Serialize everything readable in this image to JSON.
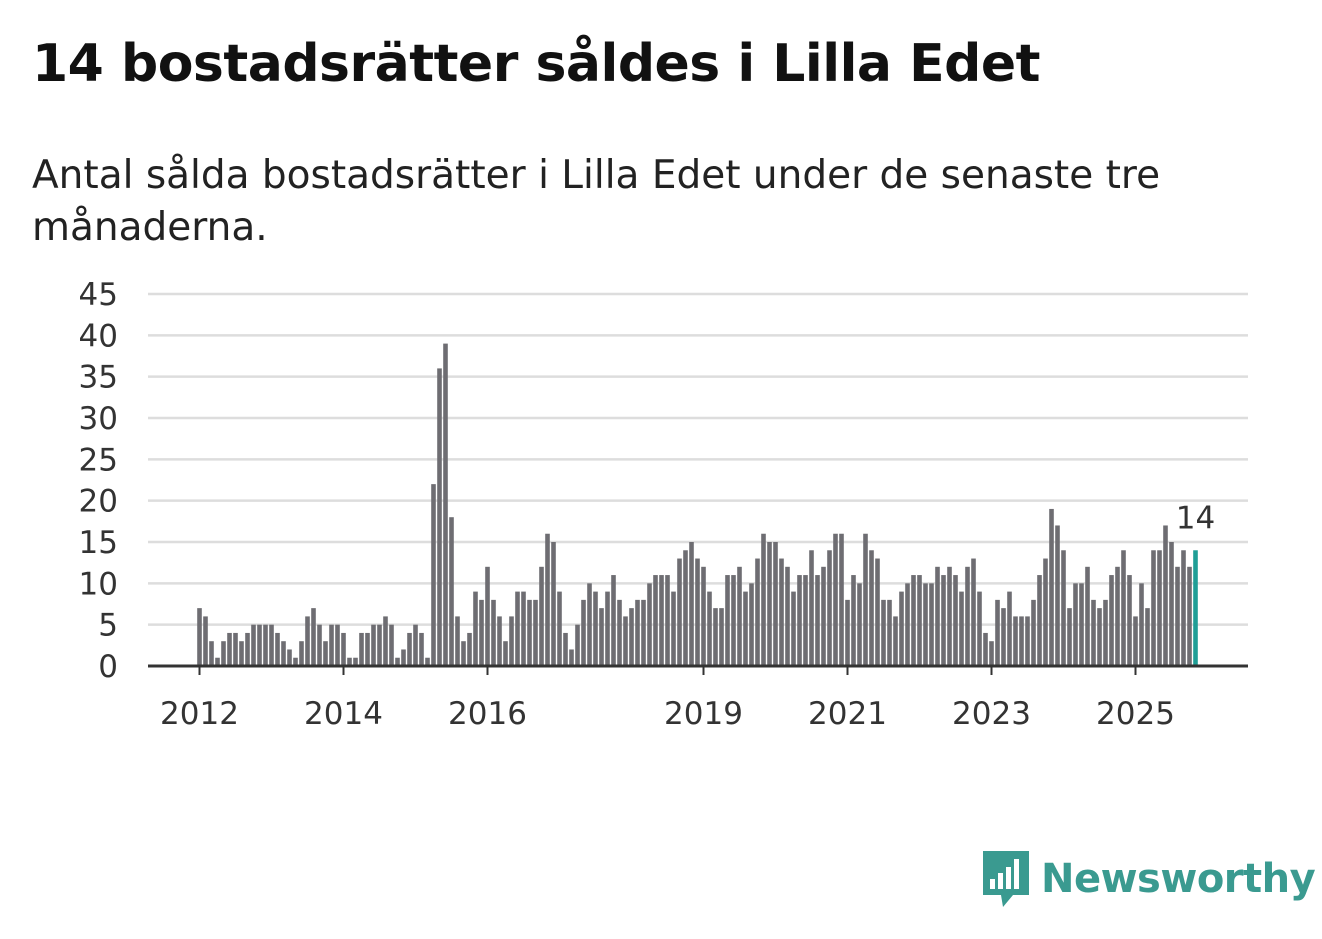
{
  "title": "14 bostadsrätter såldes i Lilla Edet",
  "subtitle": "Antal sålda bostadsrätter i Lilla Edet under de senaste tre månaderna.",
  "brand": {
    "name": "Newsworthy",
    "color": "#3a9a90"
  },
  "colors": {
    "bar": "#6e6d72",
    "highlight": "#1f9e96",
    "grid": "#dddddd",
    "axis": "#333333"
  },
  "chart_data": {
    "type": "bar",
    "title": "14 bostadsrätter såldes i Lilla Edet",
    "xlabel": "",
    "ylabel": "",
    "ylim": [
      0,
      45
    ],
    "yticks": [
      "0",
      "5",
      "10",
      "15",
      "20",
      "25",
      "30",
      "35",
      "40",
      "45"
    ],
    "xticks": [
      {
        "label": "2012",
        "index": 0
      },
      {
        "label": "2014",
        "index": 24
      },
      {
        "label": "2016",
        "index": 48
      },
      {
        "label": "2019",
        "index": 84
      },
      {
        "label": "2021",
        "index": 108
      },
      {
        "label": "2023",
        "index": 132
      },
      {
        "label": "2025",
        "index": 156
      }
    ],
    "start": "2012-01",
    "highlight_label": "14",
    "values": [
      7,
      6,
      3,
      1,
      3,
      4,
      4,
      3,
      4,
      5,
      5,
      5,
      5,
      4,
      3,
      2,
      1,
      3,
      6,
      7,
      5,
      3,
      5,
      5,
      4,
      1,
      1,
      4,
      4,
      5,
      5,
      6,
      5,
      1,
      2,
      4,
      5,
      4,
      1,
      22,
      36,
      39,
      18,
      6,
      3,
      4,
      9,
      8,
      12,
      8,
      6,
      3,
      6,
      9,
      9,
      8,
      8,
      12,
      16,
      15,
      9,
      4,
      2,
      5,
      8,
      10,
      9,
      7,
      9,
      11,
      8,
      6,
      7,
      8,
      8,
      10,
      11,
      11,
      11,
      9,
      13,
      14,
      15,
      13,
      12,
      9,
      7,
      7,
      11,
      11,
      12,
      9,
      10,
      13,
      16,
      15,
      15,
      13,
      12,
      9,
      11,
      11,
      14,
      11,
      12,
      14,
      16,
      16,
      8,
      11,
      10,
      16,
      14,
      13,
      8,
      8,
      6,
      9,
      10,
      11,
      11,
      10,
      10,
      12,
      11,
      12,
      11,
      9,
      12,
      13,
      9,
      4,
      3,
      8,
      7,
      9,
      6,
      6,
      6,
      8,
      11,
      13,
      19,
      17,
      14,
      7,
      10,
      10,
      12,
      8,
      7,
      8,
      11,
      12,
      14,
      11,
      6,
      10,
      7,
      14,
      14,
      17,
      15,
      12,
      14,
      12,
      14
    ]
  }
}
